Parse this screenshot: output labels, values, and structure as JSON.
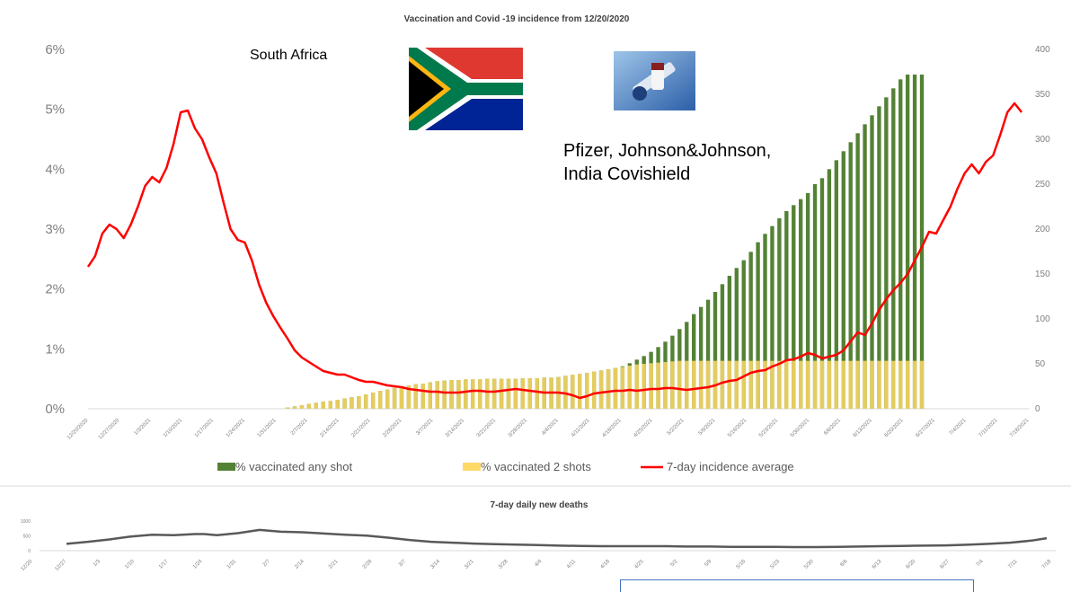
{
  "chart_data": [
    {
      "type": "bar",
      "title": "Vaccination and Covid -19 incidence from 12/20/2020",
      "annotations": {
        "country": "South Africa",
        "vaccines_line1": "Pfizer, Johnson&Johnson,",
        "vaccines_line2": "India Covishield"
      },
      "y_left": {
        "ticks": [
          "0%",
          "1%",
          "2%",
          "3%",
          "4%",
          "5%",
          "6%"
        ],
        "ylim": [
          0,
          6
        ],
        "unit": "%"
      },
      "y_right": {
        "ticks": [
          "0",
          "50",
          "100",
          "150",
          "200",
          "250",
          "300",
          "350",
          "400"
        ],
        "ylim": [
          0,
          400
        ]
      },
      "grid": false,
      "legend": {
        "placement": "bottom",
        "entries": [
          "% vaccinated any shot",
          "% vaccinated 2 shots",
          "7-day incidence average"
        ]
      },
      "x_ticks": [
        "12/20/2020",
        "12/27/2020",
        "1/3/2021",
        "1/10/2021",
        "1/17/2021",
        "1/24/2021",
        "1/31/2021",
        "2/7/2021",
        "2/14/2021",
        "2/21/2021",
        "2/28/2021",
        "3/7/2021",
        "3/14/2021",
        "3/21/2021",
        "3/28/2021",
        "4/4/2021",
        "4/11/2021",
        "4/18/2021",
        "4/25/2021",
        "5/2/2021",
        "5/9/2021",
        "5/16/2021",
        "5/23/2021",
        "5/30/2021",
        "6/6/2021",
        "6/13/2021",
        "6/20/2021",
        "6/27/2021",
        "7/4/2021",
        "7/11/2021",
        "7/18/2021"
      ],
      "series": [
        {
          "name": "% vaccinated any shot",
          "color": "#548235",
          "axis": "left",
          "x_start": 28.0,
          "values": [
            0.02,
            0.04,
            0.06,
            0.08,
            0.1,
            0.12,
            0.13,
            0.15,
            0.17,
            0.19,
            0.21,
            0.24,
            0.27,
            0.3,
            0.32,
            0.35,
            0.37,
            0.39,
            0.41,
            0.42,
            0.44,
            0.46,
            0.47,
            0.48,
            0.48,
            0.49,
            0.49,
            0.49,
            0.5,
            0.5,
            0.5,
            0.5,
            0.5,
            0.51,
            0.51,
            0.51,
            0.52,
            0.52,
            0.53,
            0.55,
            0.57,
            0.58,
            0.6,
            0.62,
            0.64,
            0.66,
            0.68,
            0.71,
            0.76,
            0.82,
            0.88,
            0.95,
            1.03,
            1.12,
            1.22,
            1.33,
            1.45,
            1.58,
            1.7,
            1.82,
            1.95,
            2.08,
            2.22,
            2.35,
            2.48,
            2.62,
            2.78,
            2.92,
            3.05,
            3.18,
            3.3,
            3.4,
            3.5,
            3.6,
            3.75,
            3.85,
            4.0,
            4.15,
            4.3,
            4.45,
            4.6,
            4.75,
            4.9,
            5.05,
            5.2,
            5.35,
            5.5,
            5.58,
            5.58,
            5.58
          ]
        },
        {
          "name": "% vaccinated 2 shots",
          "color": "#ffd966",
          "axis": "left",
          "x_start": 28.0,
          "values": [
            0.02,
            0.04,
            0.06,
            0.08,
            0.1,
            0.12,
            0.13,
            0.15,
            0.17,
            0.19,
            0.21,
            0.24,
            0.27,
            0.3,
            0.32,
            0.35,
            0.37,
            0.39,
            0.41,
            0.42,
            0.44,
            0.46,
            0.47,
            0.48,
            0.48,
            0.49,
            0.49,
            0.49,
            0.5,
            0.5,
            0.5,
            0.5,
            0.5,
            0.51,
            0.51,
            0.51,
            0.52,
            0.52,
            0.53,
            0.55,
            0.57,
            0.58,
            0.6,
            0.62,
            0.64,
            0.66,
            0.68,
            0.7,
            0.72,
            0.74,
            0.75,
            0.76,
            0.77,
            0.78,
            0.79,
            0.8,
            0.8,
            0.8,
            0.8,
            0.8,
            0.8,
            0.8,
            0.8,
            0.8,
            0.8,
            0.8,
            0.8,
            0.8,
            0.8,
            0.8,
            0.8,
            0.8,
            0.8,
            0.8,
            0.8,
            0.8,
            0.8,
            0.8,
            0.8,
            0.8,
            0.8,
            0.8,
            0.8,
            0.8,
            0.8,
            0.8,
            0.8,
            0.8,
            0.8,
            0.8
          ]
        },
        {
          "name": "7-day incidence average",
          "color": "#ff0000",
          "axis": "right",
          "points": [
            [
              0,
              158
            ],
            [
              1,
              170
            ],
            [
              2,
              195
            ],
            [
              3,
              205
            ],
            [
              4,
              200
            ],
            [
              5,
              190
            ],
            [
              6,
              205
            ],
            [
              7,
              225
            ],
            [
              8,
              248
            ],
            [
              9,
              258
            ],
            [
              10,
              252
            ],
            [
              11,
              268
            ],
            [
              12,
              295
            ],
            [
              13,
              330
            ],
            [
              14,
              332
            ],
            [
              15,
              312
            ],
            [
              16,
              300
            ],
            [
              17,
              280
            ],
            [
              18,
              262
            ],
            [
              19,
              230
            ],
            [
              20,
              200
            ],
            [
              21,
              188
            ],
            [
              22,
              185
            ],
            [
              23,
              165
            ],
            [
              24,
              138
            ],
            [
              25,
              118
            ],
            [
              26,
              103
            ],
            [
              27,
              90
            ],
            [
              28,
              78
            ],
            [
              29,
              65
            ],
            [
              30,
              57
            ],
            [
              31,
              52
            ],
            [
              32,
              47
            ],
            [
              33,
              42
            ],
            [
              34,
              40
            ],
            [
              35,
              38
            ],
            [
              36,
              38
            ],
            [
              37,
              35
            ],
            [
              38,
              32
            ],
            [
              39,
              30
            ],
            [
              40,
              30
            ],
            [
              41,
              28
            ],
            [
              42,
              26
            ],
            [
              43,
              25
            ],
            [
              44,
              24
            ],
            [
              45,
              22
            ],
            [
              46,
              21
            ],
            [
              47,
              20
            ],
            [
              48,
              19
            ],
            [
              49,
              19
            ],
            [
              50,
              18
            ],
            [
              51,
              18
            ],
            [
              52,
              18
            ],
            [
              53,
              19
            ],
            [
              54,
              20
            ],
            [
              55,
              20
            ],
            [
              56,
              19
            ],
            [
              57,
              19
            ],
            [
              58,
              20
            ],
            [
              59,
              21
            ],
            [
              60,
              22
            ],
            [
              61,
              21
            ],
            [
              62,
              20
            ],
            [
              63,
              19
            ],
            [
              64,
              18
            ],
            [
              65,
              18
            ],
            [
              66,
              18
            ],
            [
              67,
              17
            ],
            [
              68,
              15
            ],
            [
              69,
              12
            ],
            [
              70,
              14
            ],
            [
              71,
              17
            ],
            [
              72,
              18
            ],
            [
              73,
              19
            ],
            [
              74,
              20
            ],
            [
              75,
              20
            ],
            [
              76,
              21
            ],
            [
              77,
              20
            ],
            [
              78,
              21
            ],
            [
              79,
              22
            ],
            [
              80,
              22
            ],
            [
              81,
              23
            ],
            [
              82,
              23
            ],
            [
              83,
              22
            ],
            [
              84,
              21
            ],
            [
              85,
              22
            ],
            [
              86,
              23
            ],
            [
              87,
              24
            ],
            [
              88,
              26
            ],
            [
              89,
              29
            ],
            [
              90,
              31
            ],
            [
              91,
              32
            ],
            [
              92,
              36
            ],
            [
              93,
              40
            ],
            [
              94,
              42
            ],
            [
              95,
              43
            ],
            [
              96,
              47
            ],
            [
              97,
              50
            ],
            [
              98,
              54
            ],
            [
              99,
              55
            ],
            [
              100,
              58
            ],
            [
              101,
              62
            ],
            [
              102,
              60
            ],
            [
              103,
              56
            ],
            [
              104,
              58
            ],
            [
              105,
              60
            ],
            [
              106,
              65
            ],
            [
              107,
              75
            ],
            [
              108,
              85
            ],
            [
              109,
              82
            ],
            [
              110,
              95
            ],
            [
              111,
              110
            ],
            [
              112,
              122
            ],
            [
              113,
              132
            ],
            [
              114,
              140
            ],
            [
              115,
              150
            ],
            [
              116,
              165
            ],
            [
              117,
              180
            ],
            [
              118,
              197
            ],
            [
              119,
              195
            ],
            [
              120,
              210
            ],
            [
              121,
              225
            ],
            [
              122,
              245
            ],
            [
              123,
              262
            ],
            [
              124,
              272
            ],
            [
              125,
              262
            ],
            [
              126,
              275
            ],
            [
              127,
              282
            ],
            [
              128,
              305
            ],
            [
              129,
              330
            ],
            [
              130,
              340
            ],
            [
              131,
              330
            ]
          ]
        }
      ]
    },
    {
      "type": "line",
      "title": "7-day daily new deaths",
      "y_ticks": [
        "0",
        "500",
        "1000"
      ],
      "ylim": [
        0,
        1000
      ],
      "x_ticks": [
        "12/20",
        "12/27",
        "1/3",
        "1/10",
        "1/17",
        "1/24",
        "1/31",
        "2/7",
        "2/14",
        "2/21",
        "2/28",
        "3/7",
        "3/14",
        "3/21",
        "3/28",
        "4/4",
        "4/11",
        "4/18",
        "4/25",
        "5/2",
        "5/9",
        "5/16",
        "5/23",
        "5/30",
        "6/6",
        "6/13",
        "6/20",
        "6/27",
        "7/4",
        "7/11",
        "7/18"
      ],
      "series": [
        {
          "color": "#595959",
          "points": [
            [
              0,
              230
            ],
            [
              7,
              300
            ],
            [
              14,
              380
            ],
            [
              21,
              480
            ],
            [
              28,
              540
            ],
            [
              35,
              520
            ],
            [
              42,
              560
            ],
            [
              45,
              560
            ],
            [
              49,
              520
            ],
            [
              56,
              590
            ],
            [
              63,
              700
            ],
            [
              70,
              640
            ],
            [
              77,
              620
            ],
            [
              84,
              580
            ],
            [
              91,
              540
            ],
            [
              98,
              510
            ],
            [
              105,
              440
            ],
            [
              112,
              360
            ],
            [
              119,
              300
            ],
            [
              126,
              270
            ],
            [
              133,
              240
            ],
            [
              140,
              220
            ],
            [
              147,
              205
            ],
            [
              154,
              190
            ],
            [
              161,
              170
            ],
            [
              168,
              160
            ],
            [
              175,
              150
            ],
            [
              182,
              150
            ],
            [
              189,
              150
            ],
            [
              196,
              150
            ],
            [
              203,
              140
            ],
            [
              210,
              140
            ],
            [
              217,
              130
            ],
            [
              224,
              130
            ],
            [
              231,
              130
            ],
            [
              238,
              120
            ],
            [
              245,
              120
            ],
            [
              252,
              130
            ],
            [
              259,
              140
            ],
            [
              266,
              150
            ],
            [
              273,
              160
            ],
            [
              280,
              170
            ],
            [
              287,
              180
            ],
            [
              294,
              200
            ],
            [
              301,
              230
            ],
            [
              308,
              270
            ],
            [
              315,
              340
            ],
            [
              320,
              420
            ]
          ]
        }
      ]
    }
  ]
}
